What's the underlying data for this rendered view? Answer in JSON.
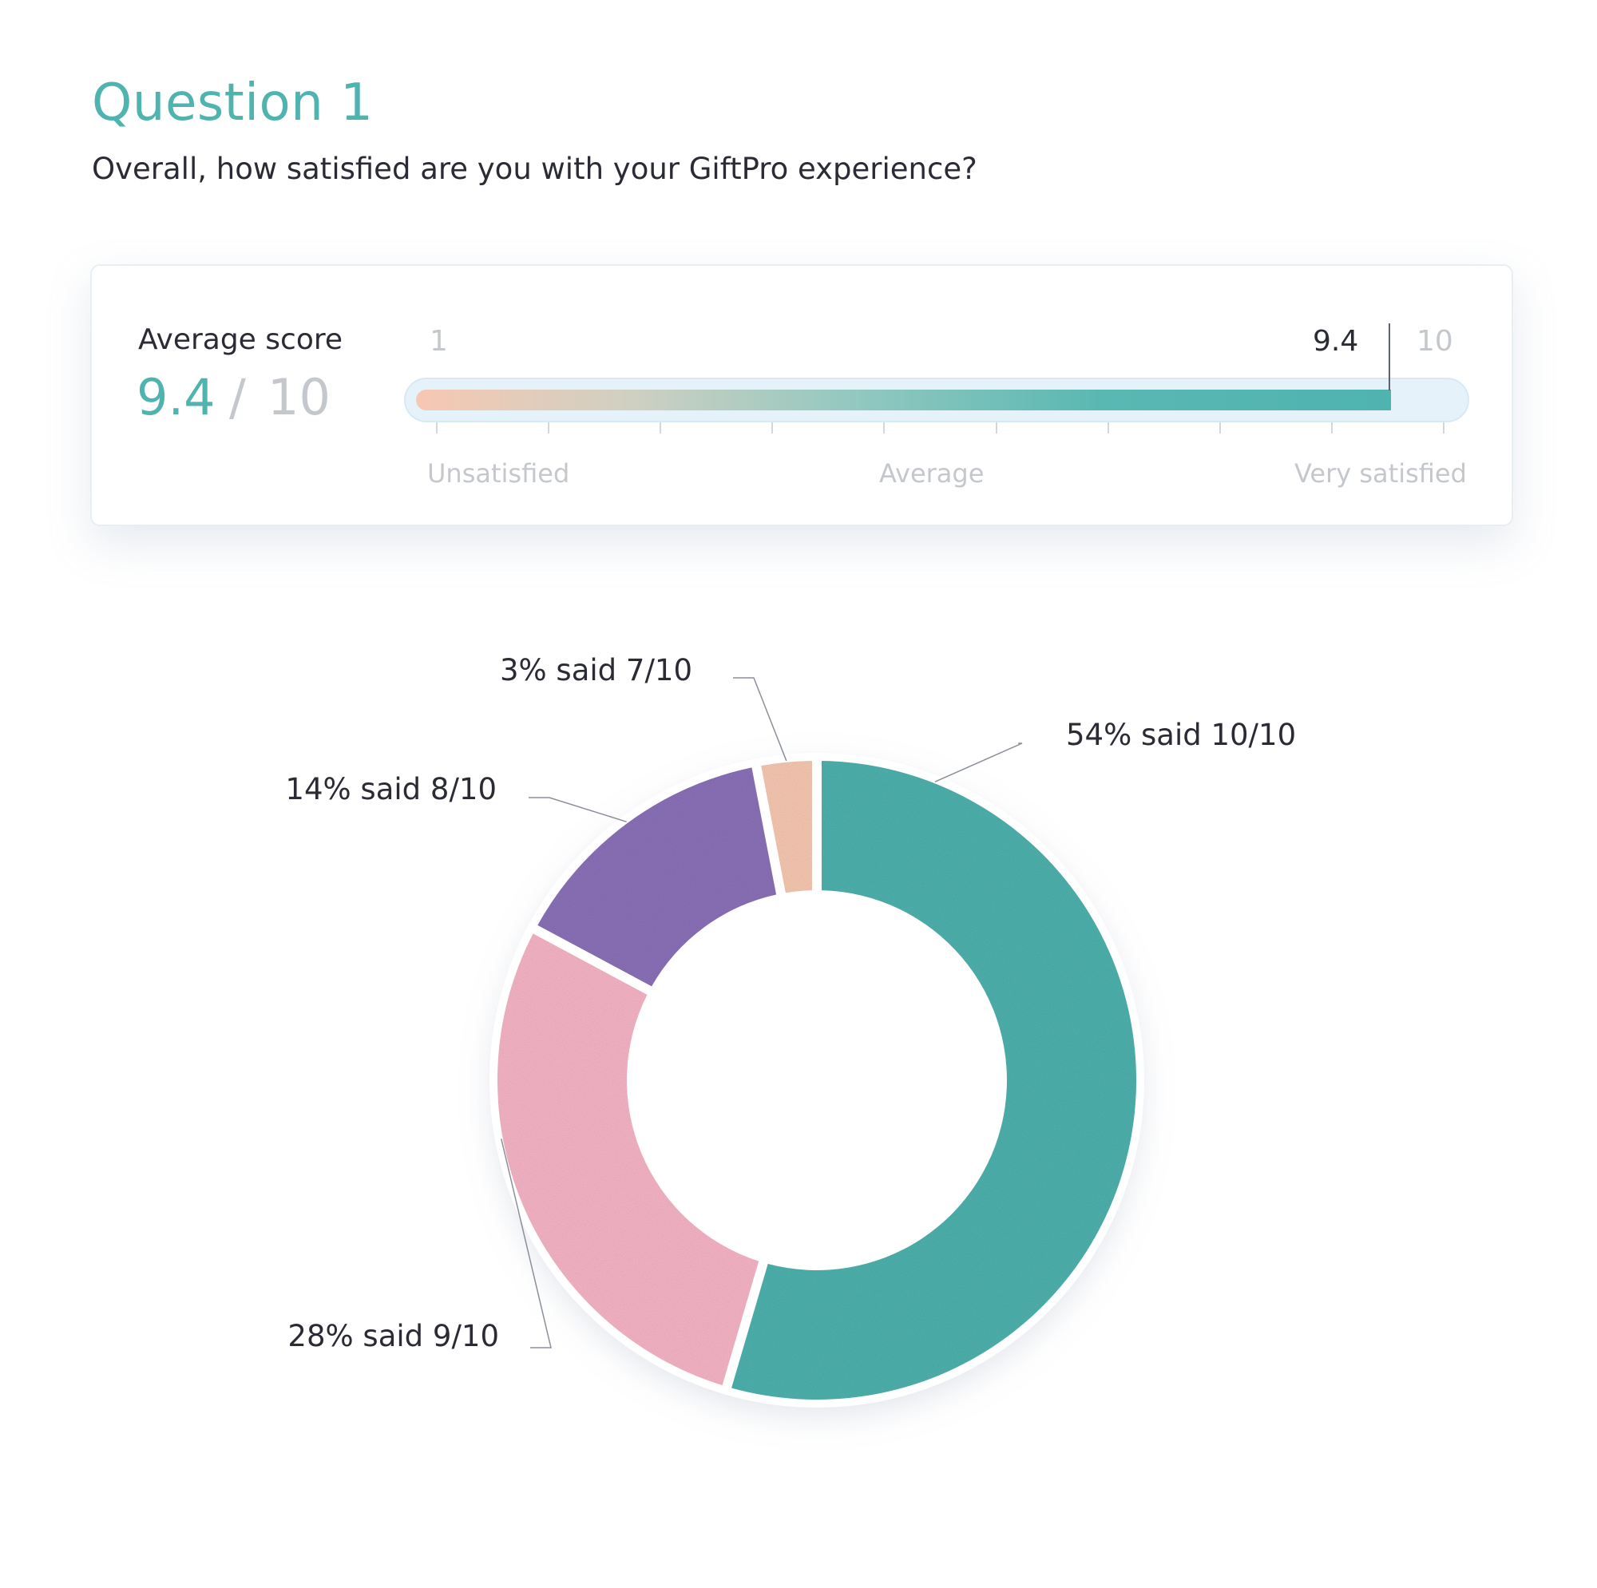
{
  "question": {
    "title": "Question 1",
    "text": "Overall, how satisfied are you with your GiftPro experience?"
  },
  "score_card": {
    "label": "Average score",
    "value": "9.4",
    "separator": "/",
    "max": "10",
    "scale_min": "1",
    "scale_max": "10",
    "score_marker": "9.4",
    "score_fraction": 0.9333,
    "low_label": "Unsatisfied",
    "mid_label": "Average",
    "high_label": "Very satisfied",
    "accent_color": "#4fb3af"
  },
  "chart_data": {
    "type": "pie",
    "style": "donut",
    "categories": [
      "10/10",
      "9/10",
      "8/10",
      "7/10"
    ],
    "values": [
      54,
      28,
      14,
      3
    ],
    "labels": [
      "54% said 10/10",
      "28% said 9/10",
      "14% said 8/10",
      "3% said 7/10"
    ],
    "colors": [
      "#4fb3af",
      "#f7b6c8",
      "#8c72b9",
      "#f8c9b2"
    ],
    "start": "top",
    "direction": "clockwise"
  }
}
